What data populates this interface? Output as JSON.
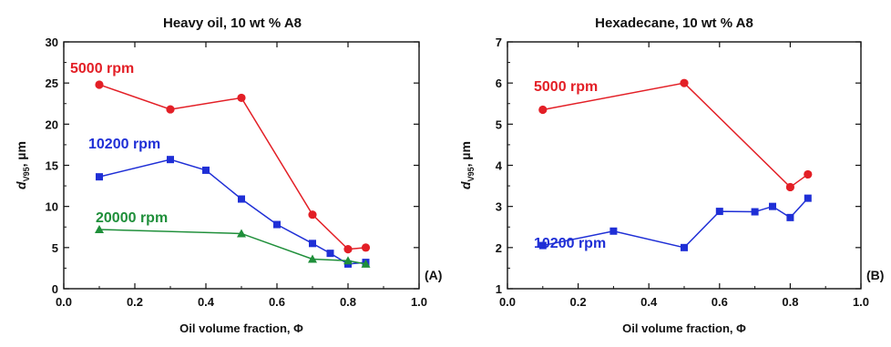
{
  "chart_data": [
    {
      "type": "line",
      "title": "Heavy oil, 10 wt % A8",
      "panel_label": "(A)",
      "xlabel": "Oil volume fraction, Φ",
      "ylabel_main": "d",
      "ylabel_sub": "V95",
      "ylabel_unit": ", µm",
      "xlim": [
        0.0,
        1.0
      ],
      "ylim": [
        0,
        30
      ],
      "xticks": [
        0.0,
        0.2,
        0.4,
        0.6,
        0.8,
        1.0
      ],
      "xtick_labels": [
        "0.0",
        "0.2",
        "0.4",
        "0.6",
        "0.8",
        "1.0"
      ],
      "yticks": [
        0,
        5,
        10,
        15,
        20,
        25,
        30
      ],
      "ytick_labels": [
        "0",
        "5",
        "10",
        "15",
        "20",
        "25",
        "30"
      ],
      "grid": false,
      "series": [
        {
          "name": "5000 rpm",
          "color": "#e31f26",
          "marker": "circle",
          "x": [
            0.1,
            0.3,
            0.5,
            0.7,
            0.8,
            0.85
          ],
          "y": [
            24.8,
            21.8,
            23.2,
            9.0,
            4.8,
            5.0
          ]
        },
        {
          "name": "10200 rpm",
          "color": "#1f2fd6",
          "marker": "square",
          "x": [
            0.1,
            0.3,
            0.4,
            0.5,
            0.6,
            0.7,
            0.75,
            0.8,
            0.85
          ],
          "y": [
            13.6,
            15.7,
            14.4,
            10.9,
            7.8,
            5.5,
            4.3,
            3.0,
            3.2
          ]
        },
        {
          "name": "20000 rpm",
          "color": "#1f8f3a",
          "marker": "triangle",
          "x": [
            0.1,
            0.5,
            0.7,
            0.8,
            0.85
          ],
          "y": [
            7.2,
            6.7,
            3.6,
            3.4,
            3.0
          ]
        }
      ]
    },
    {
      "type": "line",
      "title": "Hexadecane, 10 wt % A8",
      "panel_label": "(B)",
      "xlabel": "Oil volume fraction, Φ",
      "ylabel_main": "d",
      "ylabel_sub": "V95",
      "ylabel_unit": ", µm",
      "xlim": [
        0.0,
        1.0
      ],
      "ylim": [
        1,
        7
      ],
      "xticks": [
        0.0,
        0.2,
        0.4,
        0.6,
        0.8,
        1.0
      ],
      "xtick_labels": [
        "0.0",
        "0.2",
        "0.4",
        "0.6",
        "0.8",
        "1.0"
      ],
      "yticks": [
        1,
        2,
        3,
        4,
        5,
        6,
        7
      ],
      "ytick_labels": [
        "1",
        "2",
        "3",
        "4",
        "5",
        "6",
        "7"
      ],
      "grid": false,
      "series": [
        {
          "name": "5000 rpm",
          "color": "#e31f26",
          "marker": "circle",
          "x": [
            0.1,
            0.5,
            0.8,
            0.85
          ],
          "y": [
            5.35,
            6.0,
            3.47,
            3.78
          ]
        },
        {
          "name": "10200 rpm",
          "color": "#1f2fd6",
          "marker": "square",
          "x": [
            0.1,
            0.3,
            0.5,
            0.6,
            0.7,
            0.75,
            0.8,
            0.85
          ],
          "y": [
            2.05,
            2.4,
            2.0,
            2.88,
            2.87,
            3.0,
            2.73,
            3.2
          ]
        }
      ]
    }
  ]
}
